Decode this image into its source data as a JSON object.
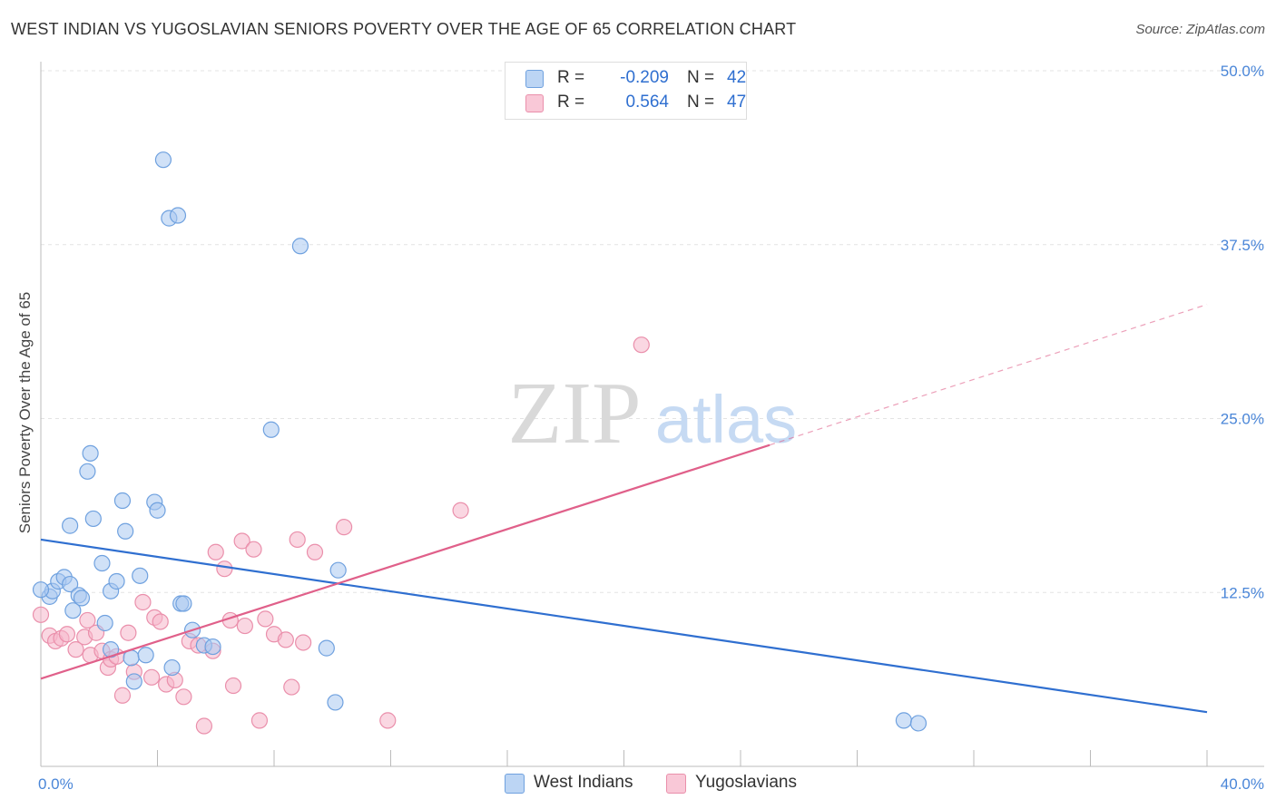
{
  "title": "WEST INDIAN VS YUGOSLAVIAN SENIORS POVERTY OVER THE AGE OF 65 CORRELATION CHART",
  "source": "Source: ZipAtlas.com",
  "watermark": {
    "zip": "ZIP",
    "atlas": "atlas"
  },
  "legend_top": {
    "rows": [
      {
        "r_label": "R =",
        "r_value": "-0.209",
        "n_label": "N =",
        "n_value": "42"
      },
      {
        "r_label": "R =",
        "r_value": "0.564",
        "n_label": "N =",
        "n_value": "47"
      }
    ]
  },
  "legend_bottom": {
    "items": [
      "West Indians",
      "Yugoslavians"
    ]
  },
  "colors": {
    "west_fill": "#a9c8f0",
    "west_stroke": "#6fa1df",
    "west_line": "#2f6fd0",
    "yugo_fill": "#f6b7ca",
    "yugo_stroke": "#ea8fab",
    "yugo_line": "#e0608a",
    "tick_text": "#4a86d8",
    "grid": "#e3e3e3"
  },
  "chart_data": {
    "type": "scatter",
    "ylabel": "Seniors Poverty Over the Age of 65",
    "xlim": [
      0,
      40
    ],
    "ylim": [
      0,
      50
    ],
    "x_tick_labels": [
      {
        "value": 0,
        "label": "0.0%"
      },
      {
        "value": 40,
        "label": "40.0%"
      }
    ],
    "y_tick_labels": [
      {
        "value": 12.5,
        "label": "12.5%"
      },
      {
        "value": 25,
        "label": "25.0%"
      },
      {
        "value": 37.5,
        "label": "37.5%"
      },
      {
        "value": 50,
        "label": "50.0%"
      }
    ],
    "grid": true,
    "series": [
      {
        "name": "West Indians",
        "trend": {
          "x": [
            0,
            40
          ],
          "y": [
            16.3,
            3.9
          ]
        },
        "points": [
          [
            0.3,
            12.2
          ],
          [
            0.4,
            12.6
          ],
          [
            0.6,
            13.3
          ],
          [
            0.8,
            13.6
          ],
          [
            1.0,
            13.1
          ],
          [
            1.0,
            17.3
          ],
          [
            1.1,
            11.2
          ],
          [
            1.3,
            12.3
          ],
          [
            1.4,
            12.1
          ],
          [
            1.6,
            21.2
          ],
          [
            1.7,
            22.5
          ],
          [
            1.8,
            17.8
          ],
          [
            2.1,
            14.6
          ],
          [
            2.2,
            10.3
          ],
          [
            2.4,
            8.4
          ],
          [
            2.4,
            12.6
          ],
          [
            2.6,
            13.3
          ],
          [
            2.8,
            19.1
          ],
          [
            2.9,
            16.9
          ],
          [
            3.1,
            7.8
          ],
          [
            3.2,
            6.1
          ],
          [
            3.4,
            13.7
          ],
          [
            3.6,
            8.0
          ],
          [
            3.9,
            19.0
          ],
          [
            4.0,
            18.4
          ],
          [
            4.2,
            43.6
          ],
          [
            4.4,
            39.4
          ],
          [
            4.5,
            7.1
          ],
          [
            4.7,
            39.6
          ],
          [
            4.8,
            11.7
          ],
          [
            4.9,
            11.7
          ],
          [
            5.2,
            9.8
          ],
          [
            5.6,
            8.7
          ],
          [
            5.9,
            8.6
          ],
          [
            7.9,
            24.2
          ],
          [
            8.9,
            37.4
          ],
          [
            9.8,
            8.5
          ],
          [
            10.1,
            4.6
          ],
          [
            10.2,
            14.1
          ],
          [
            29.6,
            3.3
          ],
          [
            30.1,
            3.1
          ],
          [
            0.0,
            12.7
          ]
        ]
      },
      {
        "name": "Yugoslavians",
        "trend": {
          "x": [
            0,
            25
          ],
          "y": [
            6.3,
            23.1
          ]
        },
        "trend_dashed": {
          "x": [
            25,
            40
          ],
          "y": [
            23.1,
            33.2
          ]
        },
        "points": [
          [
            0.0,
            10.9
          ],
          [
            0.3,
            9.4
          ],
          [
            0.5,
            9.0
          ],
          [
            0.7,
            9.2
          ],
          [
            0.9,
            9.5
          ],
          [
            1.2,
            8.4
          ],
          [
            1.5,
            9.3
          ],
          [
            1.7,
            8.0
          ],
          [
            1.9,
            9.6
          ],
          [
            2.1,
            8.3
          ],
          [
            2.3,
            7.1
          ],
          [
            2.4,
            7.7
          ],
          [
            2.6,
            7.9
          ],
          [
            2.8,
            5.1
          ],
          [
            3.0,
            9.6
          ],
          [
            3.2,
            6.8
          ],
          [
            3.5,
            11.8
          ],
          [
            3.8,
            6.4
          ],
          [
            3.9,
            10.7
          ],
          [
            4.1,
            10.4
          ],
          [
            4.3,
            5.9
          ],
          [
            4.6,
            6.2
          ],
          [
            4.9,
            5.0
          ],
          [
            5.1,
            9.0
          ],
          [
            5.4,
            8.7
          ],
          [
            5.6,
            2.9
          ],
          [
            5.9,
            8.3
          ],
          [
            6.0,
            15.4
          ],
          [
            6.3,
            14.2
          ],
          [
            6.5,
            10.5
          ],
          [
            6.6,
            5.8
          ],
          [
            6.9,
            16.2
          ],
          [
            7.0,
            10.1
          ],
          [
            7.3,
            15.6
          ],
          [
            7.5,
            3.3
          ],
          [
            7.7,
            10.6
          ],
          [
            8.0,
            9.5
          ],
          [
            8.4,
            9.1
          ],
          [
            8.6,
            5.7
          ],
          [
            8.8,
            16.3
          ],
          [
            9.0,
            8.9
          ],
          [
            9.4,
            15.4
          ],
          [
            10.4,
            17.2
          ],
          [
            11.9,
            3.3
          ],
          [
            14.4,
            18.4
          ],
          [
            20.6,
            30.3
          ],
          [
            1.6,
            10.5
          ]
        ]
      }
    ]
  }
}
